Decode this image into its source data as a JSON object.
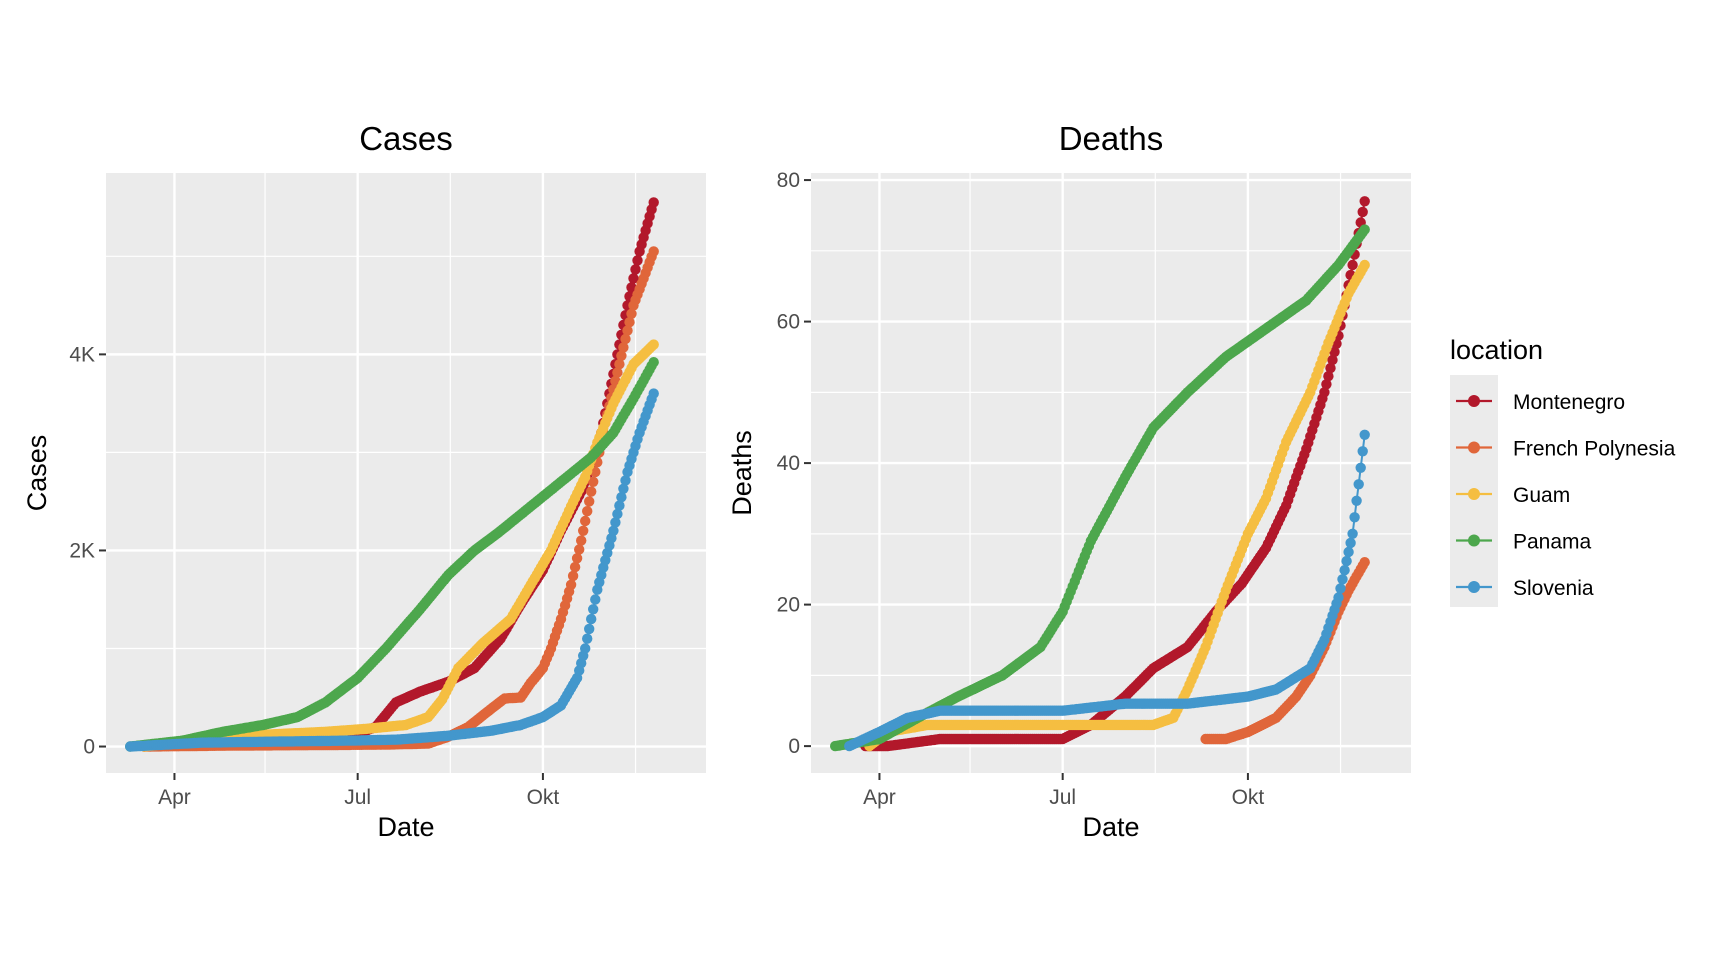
{
  "legend": {
    "title": "location",
    "items": [
      {
        "label": "Montenegro",
        "color": "#B2182B"
      },
      {
        "label": "French Polynesia",
        "color": "#E0663A"
      },
      {
        "label": "Guam",
        "color": "#F5BE41"
      },
      {
        "label": "Panama",
        "color": "#4DA74D"
      },
      {
        "label": "Slovenia",
        "color": "#4397CC"
      }
    ]
  },
  "chart_data": [
    {
      "type": "line",
      "title": "Cases",
      "xlabel": "Date",
      "ylabel": "Cases",
      "x_ticks": [
        {
          "date": "2020-04-01",
          "label": "Apr"
        },
        {
          "date": "2020-07-01",
          "label": "Jul"
        },
        {
          "date": "2020-10-01",
          "label": "Okt"
        }
      ],
      "x_minor_ticks": [
        "2020-05-16",
        "2020-08-16",
        "2020-11-16"
      ],
      "xlim": [
        "2020-02-27",
        "2020-12-21"
      ],
      "y_ticks": [
        {
          "value": 0,
          "label": "0"
        },
        {
          "value": 2000,
          "label": "2K"
        },
        {
          "value": 4000,
          "label": "4K"
        }
      ],
      "ylim": [
        -270,
        5850
      ],
      "grid": true,
      "markers": true,
      "series": [
        {
          "name": "Montenegro",
          "color": "#B2182B",
          "points": [
            [
              "2020-03-17",
              0
            ],
            [
              "2020-04-15",
              60
            ],
            [
              "2020-05-20",
              75
            ],
            [
              "2020-06-25",
              85
            ],
            [
              "2020-07-10",
              200
            ],
            [
              "2020-07-20",
              450
            ],
            [
              "2020-08-01",
              560
            ],
            [
              "2020-08-15",
              660
            ],
            [
              "2020-08-28",
              800
            ],
            [
              "2020-09-10",
              1100
            ],
            [
              "2020-09-20",
              1450
            ],
            [
              "2020-10-01",
              1800
            ],
            [
              "2020-10-10",
              2200
            ],
            [
              "2020-10-20",
              2600
            ],
            [
              "2020-10-28",
              3000
            ],
            [
              "2020-11-05",
              3800
            ],
            [
              "2020-11-12",
              4500
            ],
            [
              "2020-11-18",
              5050
            ],
            [
              "2020-11-25",
              5550
            ]
          ]
        },
        {
          "name": "French Polynesia",
          "color": "#E0663A",
          "points": [
            [
              "2020-03-17",
              0
            ],
            [
              "2020-05-01",
              10
            ],
            [
              "2020-06-15",
              15
            ],
            [
              "2020-07-15",
              20
            ],
            [
              "2020-08-05",
              30
            ],
            [
              "2020-08-15",
              100
            ],
            [
              "2020-08-25",
              200
            ],
            [
              "2020-09-05",
              380
            ],
            [
              "2020-09-12",
              490
            ],
            [
              "2020-09-20",
              500
            ],
            [
              "2020-09-25",
              650
            ],
            [
              "2020-10-01",
              800
            ],
            [
              "2020-10-05",
              1000
            ],
            [
              "2020-10-10",
              1300
            ],
            [
              "2020-10-15",
              1650
            ],
            [
              "2020-10-20",
              2100
            ],
            [
              "2020-10-25",
              2600
            ],
            [
              "2020-11-01",
              3300
            ],
            [
              "2020-11-08",
              3900
            ],
            [
              "2020-11-15",
              4500
            ],
            [
              "2020-11-25",
              5050
            ]
          ]
        },
        {
          "name": "Guam",
          "color": "#F5BE41",
          "points": [
            [
              "2020-03-17",
              0
            ],
            [
              "2020-04-10",
              60
            ],
            [
              "2020-05-15",
              120
            ],
            [
              "2020-06-15",
              150
            ],
            [
              "2020-07-05",
              180
            ],
            [
              "2020-07-25",
              220
            ],
            [
              "2020-08-05",
              300
            ],
            [
              "2020-08-12",
              480
            ],
            [
              "2020-08-20",
              800
            ],
            [
              "2020-09-01",
              1050
            ],
            [
              "2020-09-15",
              1300
            ],
            [
              "2020-09-25",
              1650
            ],
            [
              "2020-10-05",
              2000
            ],
            [
              "2020-10-15",
              2450
            ],
            [
              "2020-10-22",
              2750
            ],
            [
              "2020-10-28",
              3100
            ],
            [
              "2020-11-05",
              3500
            ],
            [
              "2020-11-15",
              3900
            ],
            [
              "2020-11-25",
              4100
            ]
          ]
        },
        {
          "name": "Panama",
          "color": "#4DA74D",
          "points": [
            [
              "2020-03-10",
              0
            ],
            [
              "2020-04-05",
              60
            ],
            [
              "2020-04-25",
              150
            ],
            [
              "2020-05-15",
              220
            ],
            [
              "2020-06-01",
              300
            ],
            [
              "2020-06-15",
              450
            ],
            [
              "2020-07-01",
              700
            ],
            [
              "2020-07-15",
              1000
            ],
            [
              "2020-08-01",
              1400
            ],
            [
              "2020-08-15",
              1750
            ],
            [
              "2020-08-28",
              2000
            ],
            [
              "2020-09-10",
              2200
            ],
            [
              "2020-09-25",
              2450
            ],
            [
              "2020-10-10",
              2700
            ],
            [
              "2020-10-25",
              2950
            ],
            [
              "2020-11-05",
              3200
            ],
            [
              "2020-11-15",
              3550
            ],
            [
              "2020-11-25",
              3920
            ]
          ]
        },
        {
          "name": "Slovenia",
          "color": "#4397CC",
          "points": [
            [
              "2020-03-10",
              0
            ],
            [
              "2020-04-15",
              40
            ],
            [
              "2020-05-20",
              50
            ],
            [
              "2020-06-25",
              60
            ],
            [
              "2020-07-20",
              70
            ],
            [
              "2020-08-15",
              110
            ],
            [
              "2020-09-05",
              160
            ],
            [
              "2020-09-20",
              220
            ],
            [
              "2020-10-01",
              300
            ],
            [
              "2020-10-10",
              420
            ],
            [
              "2020-10-18",
              700
            ],
            [
              "2020-10-22",
              1000
            ],
            [
              "2020-10-28",
              1600
            ],
            [
              "2020-11-05",
              2200
            ],
            [
              "2020-11-12",
              2800
            ],
            [
              "2020-11-18",
              3200
            ],
            [
              "2020-11-25",
              3600
            ]
          ]
        }
      ]
    },
    {
      "type": "line",
      "title": "Deaths",
      "xlabel": "Date",
      "ylabel": "Deaths",
      "x_ticks": [
        {
          "date": "2020-04-01",
          "label": "Apr"
        },
        {
          "date": "2020-07-01",
          "label": "Jul"
        },
        {
          "date": "2020-10-01",
          "label": "Okt"
        }
      ],
      "x_minor_ticks": [
        "2020-05-16",
        "2020-08-16",
        "2020-11-16"
      ],
      "xlim": [
        "2020-02-27",
        "2020-12-21"
      ],
      "y_ticks": [
        {
          "value": 0,
          "label": "0"
        },
        {
          "value": 20,
          "label": "20"
        },
        {
          "value": 40,
          "label": "40"
        },
        {
          "value": 60,
          "label": "60"
        },
        {
          "value": 80,
          "label": "80"
        }
      ],
      "ylim": [
        -3.8,
        81
      ],
      "grid": true,
      "markers": true,
      "series": [
        {
          "name": "Montenegro",
          "color": "#B2182B",
          "points": [
            [
              "2020-03-25",
              0
            ],
            [
              "2020-04-05",
              0
            ],
            [
              "2020-05-01",
              1
            ],
            [
              "2020-06-01",
              1
            ],
            [
              "2020-07-01",
              1
            ],
            [
              "2020-07-15",
              3
            ],
            [
              "2020-08-01",
              7
            ],
            [
              "2020-08-15",
              11
            ],
            [
              "2020-09-01",
              14
            ],
            [
              "2020-09-15",
              19
            ],
            [
              "2020-09-28",
              23
            ],
            [
              "2020-10-10",
              28
            ],
            [
              "2020-10-20",
              34
            ],
            [
              "2020-10-30",
              42
            ],
            [
              "2020-11-08",
              50
            ],
            [
              "2020-11-15",
              58
            ],
            [
              "2020-11-22",
              68
            ],
            [
              "2020-11-28",
              77
            ]
          ]
        },
        {
          "name": "French Polynesia",
          "color": "#E0663A",
          "points": [
            [
              "2020-09-10",
              1
            ],
            [
              "2020-09-20",
              1
            ],
            [
              "2020-10-01",
              2
            ],
            [
              "2020-10-15",
              4
            ],
            [
              "2020-10-25",
              7
            ],
            [
              "2020-11-01",
              10
            ],
            [
              "2020-11-08",
              14
            ],
            [
              "2020-11-15",
              19
            ],
            [
              "2020-11-20",
              22
            ],
            [
              "2020-11-28",
              26
            ]
          ]
        },
        {
          "name": "Guam",
          "color": "#F5BE41",
          "points": [
            [
              "2020-03-27",
              0
            ],
            [
              "2020-04-05",
              2
            ],
            [
              "2020-04-25",
              3
            ],
            [
              "2020-05-20",
              3
            ],
            [
              "2020-06-30",
              3
            ],
            [
              "2020-08-15",
              3
            ],
            [
              "2020-08-25",
              4
            ],
            [
              "2020-09-01",
              8
            ],
            [
              "2020-09-10",
              14
            ],
            [
              "2020-09-20",
              22
            ],
            [
              "2020-10-01",
              30
            ],
            [
              "2020-10-10",
              35
            ],
            [
              "2020-10-20",
              43
            ],
            [
              "2020-11-01",
              50
            ],
            [
              "2020-11-10",
              57
            ],
            [
              "2020-11-20",
              64
            ],
            [
              "2020-11-28",
              68
            ]
          ]
        },
        {
          "name": "Panama",
          "color": "#4DA74D",
          "points": [
            [
              "2020-03-10",
              0
            ],
            [
              "2020-04-01",
              1
            ],
            [
              "2020-04-20",
              4
            ],
            [
              "2020-05-10",
              7
            ],
            [
              "2020-06-01",
              10
            ],
            [
              "2020-06-20",
              14
            ],
            [
              "2020-07-01",
              19
            ],
            [
              "2020-07-15",
              29
            ],
            [
              "2020-08-01",
              38
            ],
            [
              "2020-08-15",
              45
            ],
            [
              "2020-09-01",
              50
            ],
            [
              "2020-09-20",
              55
            ],
            [
              "2020-10-10",
              59
            ],
            [
              "2020-10-30",
              63
            ],
            [
              "2020-11-15",
              68
            ],
            [
              "2020-11-28",
              73
            ]
          ]
        },
        {
          "name": "Slovenia",
          "color": "#4397CC",
          "points": [
            [
              "2020-03-17",
              0
            ],
            [
              "2020-04-01",
              2
            ],
            [
              "2020-04-15",
              4
            ],
            [
              "2020-05-01",
              5
            ],
            [
              "2020-06-01",
              5
            ],
            [
              "2020-07-01",
              5
            ],
            [
              "2020-08-01",
              6
            ],
            [
              "2020-09-01",
              6
            ],
            [
              "2020-10-01",
              7
            ],
            [
              "2020-10-15",
              8
            ],
            [
              "2020-11-01",
              11
            ],
            [
              "2020-11-08",
              15
            ],
            [
              "2020-11-15",
              21
            ],
            [
              "2020-11-22",
              30
            ],
            [
              "2020-11-28",
              44
            ]
          ]
        }
      ]
    }
  ]
}
